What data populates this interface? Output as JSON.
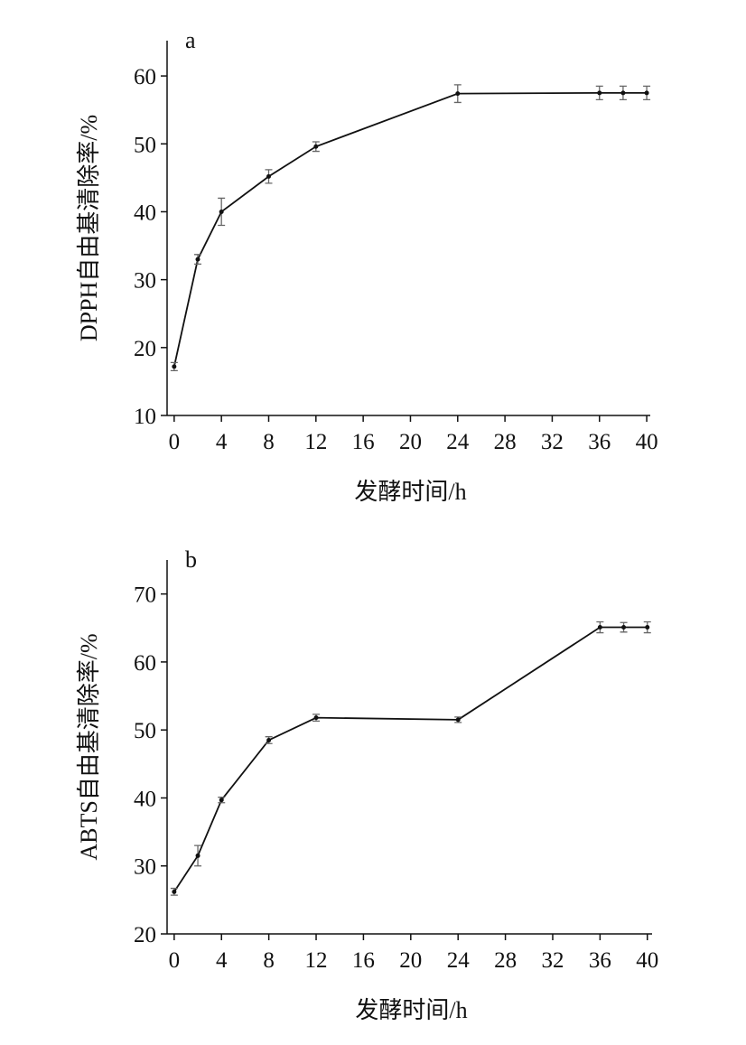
{
  "chart_data": [
    {
      "type": "line",
      "panel_label": "a",
      "x_label": "发酵时间/h",
      "y_label": "DPPH自由基清除率/%",
      "x": [
        0,
        2,
        4,
        8,
        12,
        24,
        36,
        38,
        40
      ],
      "series": [
        {
          "color": "#111111",
          "values": [
            17.2,
            33,
            40,
            45.2,
            49.6,
            57.4,
            57.5,
            57.5,
            57.5
          ],
          "errors": [
            0.6,
            0.7,
            2,
            1,
            0.7,
            1.3,
            1,
            1,
            1
          ]
        }
      ],
      "xlim": [
        -0.6,
        40.3
      ],
      "xticks": [
        0,
        4,
        8,
        12,
        16,
        20,
        24,
        28,
        32,
        36,
        40
      ],
      "ylim": [
        10,
        65.2
      ],
      "yticks": [
        10,
        20,
        30,
        40,
        50,
        60
      ]
    },
    {
      "type": "line",
      "panel_label": "b",
      "x_label": "发酵时间/h",
      "y_label": "ABTS自由基清除率/%",
      "x": [
        0,
        2,
        4,
        8,
        12,
        24,
        36,
        38,
        40
      ],
      "series": [
        {
          "color": "#111111",
          "values": [
            26.2,
            31.5,
            39.7,
            48.5,
            51.8,
            51.5,
            65.1,
            65.1,
            65.1
          ],
          "errors": [
            0.5,
            1.5,
            0.4,
            0.5,
            0.5,
            0.4,
            0.8,
            0.7,
            0.8
          ]
        }
      ],
      "xlim": [
        -0.6,
        40.4
      ],
      "xticks": [
        0,
        4,
        8,
        12,
        16,
        20,
        24,
        28,
        32,
        36,
        40
      ],
      "ylim": [
        20,
        75
      ],
      "yticks": [
        20,
        30,
        40,
        50,
        60,
        70
      ]
    }
  ]
}
